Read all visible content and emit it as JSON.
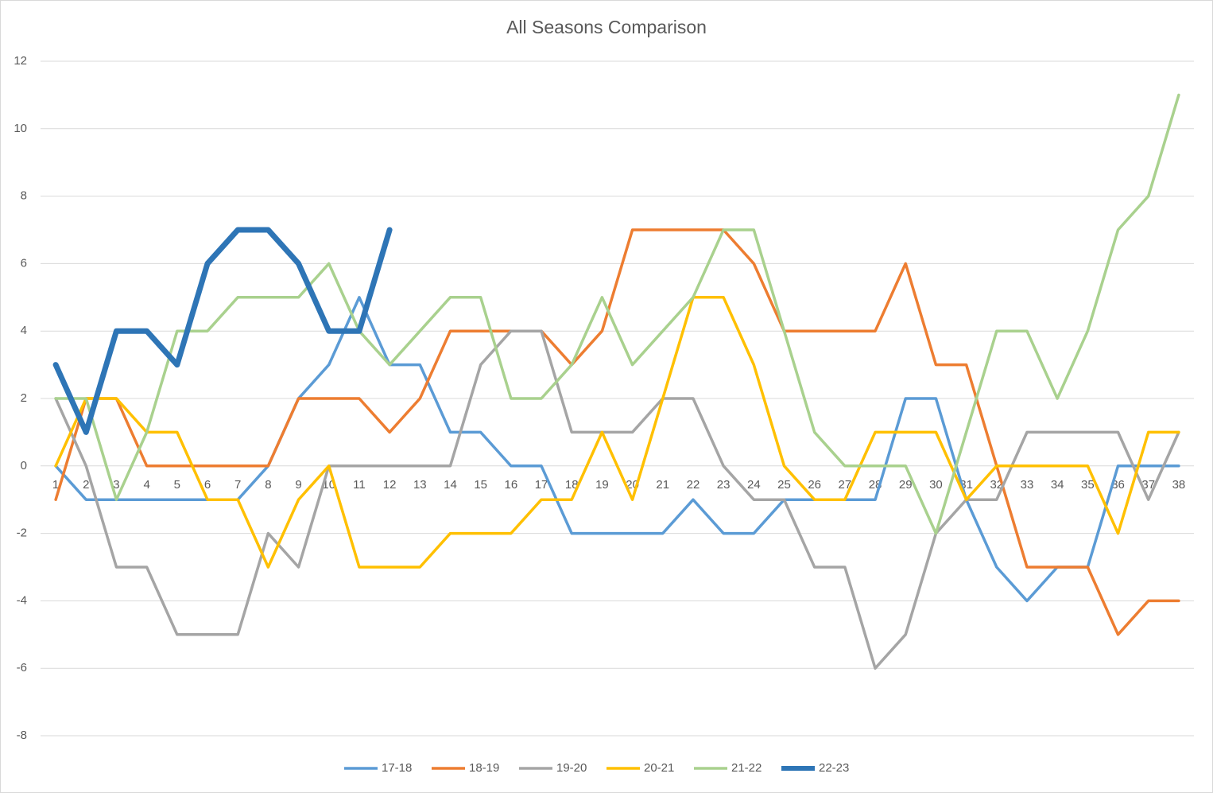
{
  "chart_data": {
    "type": "line",
    "title": "All Seasons Comparison",
    "categories": [
      1,
      2,
      3,
      4,
      5,
      6,
      7,
      8,
      9,
      10,
      11,
      12,
      13,
      14,
      15,
      16,
      17,
      18,
      19,
      20,
      21,
      22,
      23,
      24,
      25,
      26,
      27,
      28,
      29,
      30,
      31,
      32,
      33,
      34,
      35,
      36,
      37,
      38
    ],
    "ylim": [
      -8,
      12
    ],
    "yticks": [
      -8,
      -6,
      -4,
      -2,
      0,
      2,
      4,
      6,
      8,
      10,
      12
    ],
    "grid": true,
    "legend": "bottom",
    "series": [
      {
        "name": "17-18",
        "color": "#5b9bd5",
        "values": [
          0,
          -1,
          -1,
          -1,
          -1,
          -1,
          -1,
          0,
          2,
          3,
          5,
          3,
          3,
          1,
          1,
          0,
          0,
          -2,
          -2,
          -2,
          -2,
          -1,
          -2,
          -2,
          -1,
          -1,
          -1,
          -1,
          2,
          2,
          -1,
          -3,
          -4,
          -3,
          -3,
          0,
          0,
          0
        ]
      },
      {
        "name": "18-19",
        "color": "#ed7d31",
        "values": [
          -1,
          2,
          2,
          0,
          0,
          0,
          0,
          0,
          2,
          2,
          2,
          1,
          2,
          4,
          4,
          4,
          4,
          3,
          4,
          7,
          7,
          7,
          7,
          6,
          4,
          4,
          4,
          4,
          6,
          3,
          3,
          0,
          -3,
          -3,
          -3,
          -5,
          -4,
          -4
        ]
      },
      {
        "name": "19-20",
        "color": "#a5a5a5",
        "values": [
          2,
          0,
          -3,
          -3,
          -5,
          -5,
          -5,
          -2,
          -3,
          0,
          0,
          0,
          0,
          0,
          3,
          4,
          4,
          1,
          1,
          1,
          2,
          2,
          0,
          -1,
          -1,
          -3,
          -3,
          -6,
          -5,
          -2,
          -1,
          -1,
          1,
          1,
          1,
          1,
          -1,
          1
        ]
      },
      {
        "name": "20-21",
        "color": "#ffc000",
        "values": [
          0,
          2,
          2,
          1,
          1,
          -1,
          -1,
          -3,
          -1,
          0,
          -3,
          -3,
          -3,
          -2,
          -2,
          -2,
          -1,
          -1,
          1,
          -1,
          2,
          5,
          5,
          3,
          0,
          -1,
          -1,
          1,
          1,
          1,
          -1,
          0,
          0,
          0,
          0,
          -2,
          1,
          1
        ]
      },
      {
        "name": "21-22",
        "color": "#a9d18e",
        "values": [
          2,
          2,
          -1,
          1,
          4,
          4,
          5,
          5,
          5,
          6,
          4,
          3,
          4,
          5,
          5,
          2,
          2,
          3,
          5,
          3,
          4,
          5,
          7,
          7,
          4,
          1,
          0,
          0,
          0,
          -2,
          1,
          4,
          4,
          2,
          4,
          7,
          8,
          11
        ]
      },
      {
        "name": "22-23",
        "color": "#2e75b6",
        "values": [
          3,
          1,
          4,
          4,
          3,
          6,
          7,
          7,
          6,
          4,
          4,
          7,
          null,
          null,
          null,
          null,
          null,
          null,
          null,
          null,
          null,
          null,
          null,
          null,
          null,
          null,
          null,
          null,
          null,
          null,
          null,
          null,
          null,
          null,
          null,
          null,
          null,
          null
        ]
      }
    ]
  }
}
